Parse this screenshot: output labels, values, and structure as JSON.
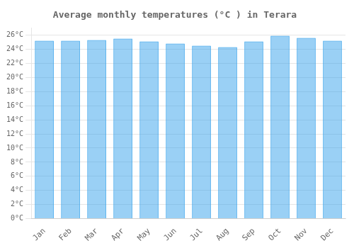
{
  "chart_data": {
    "type": "bar",
    "title": "Average monthly temperatures (°C ) in Terara",
    "categories": [
      "Jan",
      "Feb",
      "Mar",
      "Apr",
      "May",
      "Jun",
      "Jul",
      "Aug",
      "Sep",
      "Oct",
      "Nov",
      "Dec"
    ],
    "values": [
      25.2,
      25.2,
      25.3,
      25.5,
      25.1,
      24.8,
      24.5,
      24.3,
      25.1,
      25.9,
      25.6,
      25.2
    ],
    "ylim": [
      0,
      27
    ],
    "yticks": [
      {
        "value": 0,
        "label": "0°C"
      },
      {
        "value": 2,
        "label": "2°C"
      },
      {
        "value": 4,
        "label": "4°C"
      },
      {
        "value": 6,
        "label": "6°C"
      },
      {
        "value": 8,
        "label": "8°C"
      },
      {
        "value": 10,
        "label": "10°C"
      },
      {
        "value": 12,
        "label": "12°C"
      },
      {
        "value": 14,
        "label": "14°C"
      },
      {
        "value": 16,
        "label": "16°C"
      },
      {
        "value": 18,
        "label": "18°C"
      },
      {
        "value": 20,
        "label": "20°C"
      },
      {
        "value": 22,
        "label": "22°C"
      },
      {
        "value": 24,
        "label": "24°C"
      },
      {
        "value": 26,
        "label": "26°C"
      }
    ],
    "grid": true
  }
}
